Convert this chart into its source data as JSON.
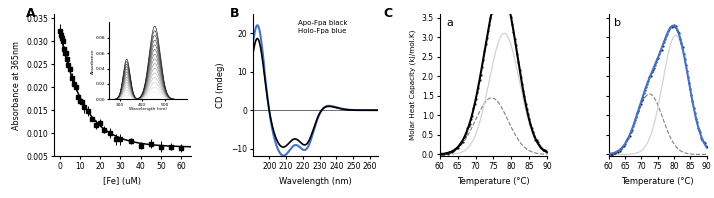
{
  "panel_A": {
    "label": "A",
    "xlabel": "[Fe] (uM)",
    "ylabel": "Absorbance at 365nm",
    "ylim": [
      0.005,
      0.036
    ],
    "xlim": [
      -3,
      65
    ],
    "yticks": [
      0.005,
      0.01,
      0.015,
      0.02,
      0.025,
      0.03,
      0.035
    ],
    "xticks": [
      0,
      10,
      20,
      30,
      40,
      50,
      60
    ],
    "decay_a": 0.0255,
    "decay_b": 0.007,
    "decay_k": 0.085
  },
  "panel_B": {
    "label": "B",
    "xlabel": "Wavelength (nm)",
    "ylabel": "CD (mdeg)",
    "xlim": [
      190,
      265
    ],
    "ylim": [
      -12,
      25
    ],
    "yticks": [
      -10,
      0,
      10,
      20
    ],
    "xticks": [
      200,
      210,
      220,
      230,
      240,
      250,
      260
    ],
    "legend_text": "Apo-Fpa black\nHolo-Fpa blue",
    "apo_color": "black",
    "holo_color": "#4472C4"
  },
  "panel_Ca": {
    "label": "a",
    "xlabel": "Temperature (°C)",
    "ylabel": "Molar Heat Capacity (kJ/mol.K)",
    "xlim": [
      60,
      90
    ],
    "ylim": [
      -0.05,
      3.6
    ],
    "yticks": [
      0,
      0.5,
      1.0,
      1.5,
      2.0,
      2.5,
      3.0,
      3.5
    ],
    "xticks": [
      60,
      65,
      70,
      75,
      80,
      85,
      90
    ],
    "main_color": "black",
    "peak1_mu": 74.5,
    "peak1_sigma": 4.5,
    "peak1_amp": 1.45,
    "peak2_mu": 78.0,
    "peak2_sigma": 4.2,
    "peak2_amp": 3.1
  },
  "panel_Cb": {
    "label": "b",
    "xlabel": "Temperature (°C)",
    "xlim": [
      60,
      90
    ],
    "ylim": [
      -0.05,
      3.6
    ],
    "yticks": [
      0,
      0.5,
      1.0,
      1.5,
      2.0,
      2.5,
      3.0,
      3.5
    ],
    "xticks": [
      60,
      65,
      70,
      75,
      80,
      85,
      90
    ],
    "main_color": "#4472C4",
    "peak1_mu": 72.5,
    "peak1_sigma": 4.0,
    "peak1_amp": 1.55,
    "peak2_mu": 80.5,
    "peak2_sigma": 4.0,
    "peak2_amp": 3.05
  },
  "panel_C_label": "C",
  "background_color": "white"
}
